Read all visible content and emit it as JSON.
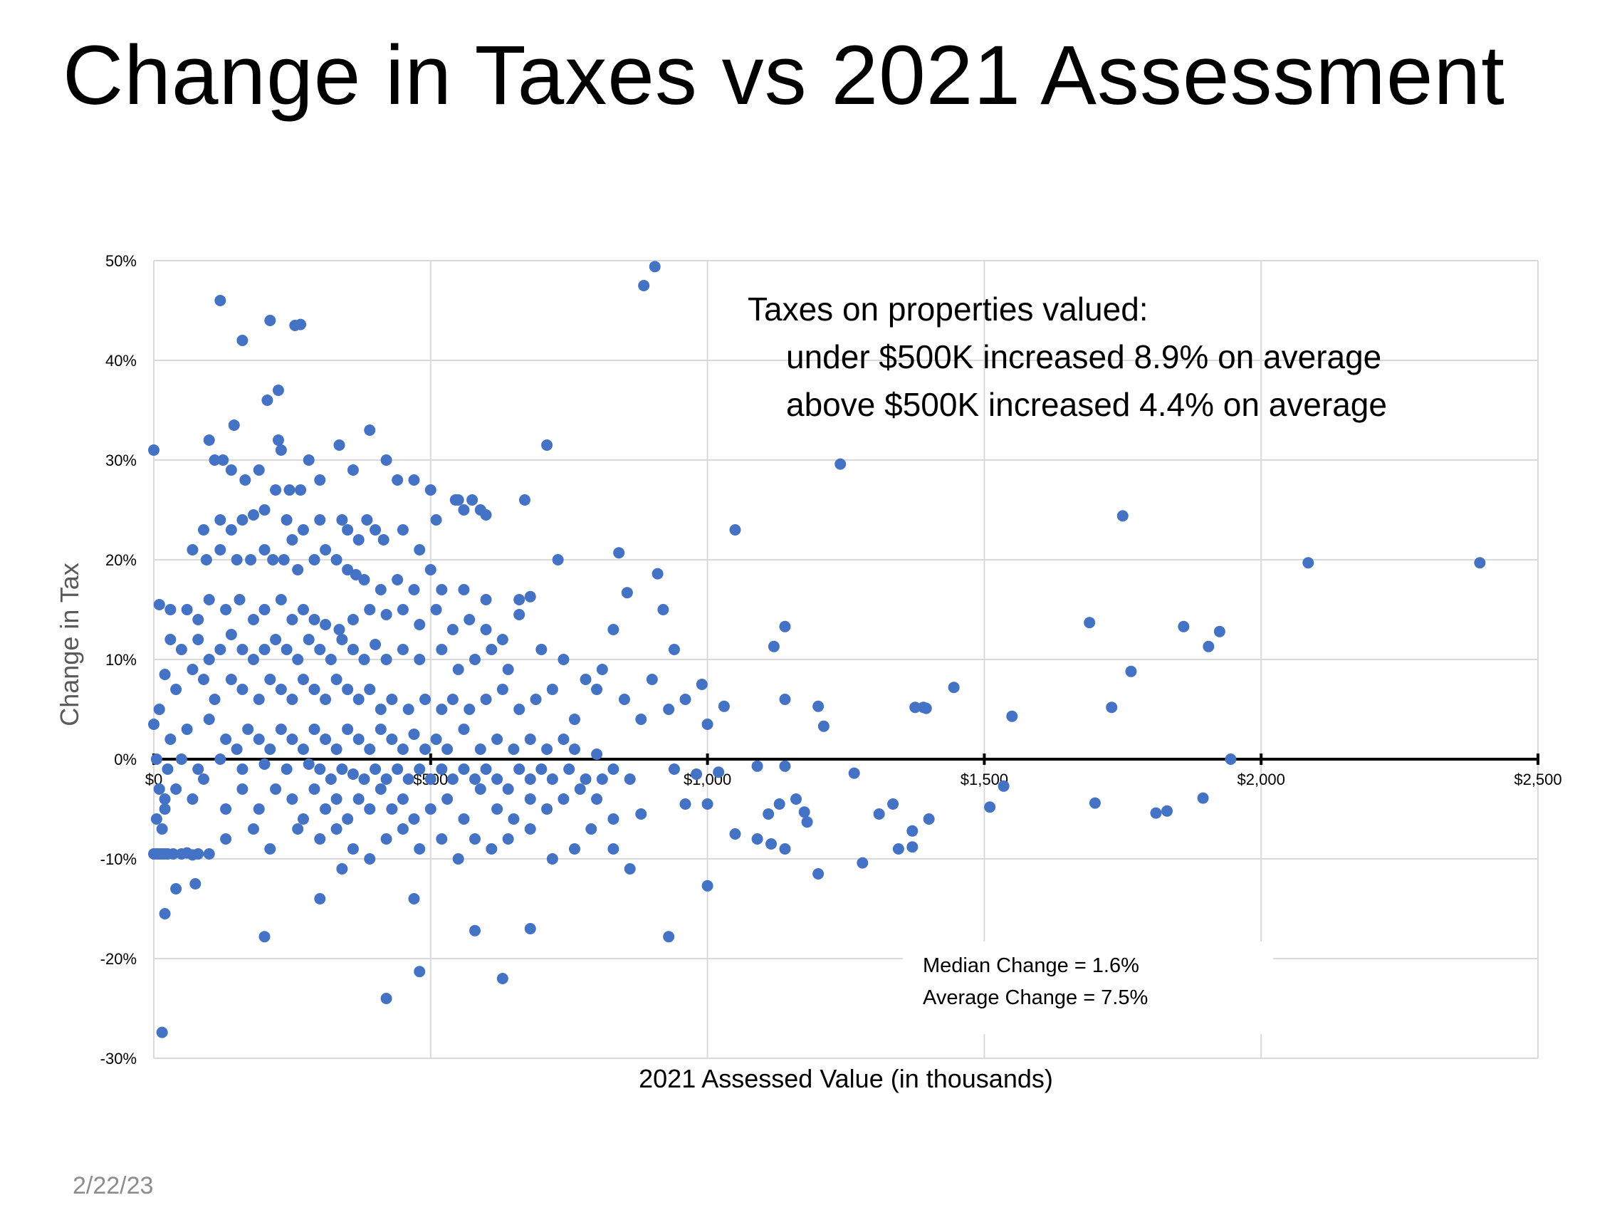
{
  "slide": {
    "title": "Change in Taxes vs 2021 Assessment",
    "date": "2/22/23"
  },
  "colors": {
    "point": "#4472C4",
    "grid": "#d9d9d9",
    "axis": "#000000"
  },
  "chart_data": {
    "type": "scatter",
    "xlabel": "2021 Assessed Value (in thousands)",
    "ylabel": "Change in Tax",
    "xlim": [
      0,
      2500
    ],
    "ylim": [
      -30,
      50
    ],
    "x_ticks": [
      {
        "value": 0,
        "label": "$0"
      },
      {
        "value": 500,
        "label": "$500"
      },
      {
        "value": 1000,
        "label": "$1,000"
      },
      {
        "value": 1500,
        "label": "$1,500"
      },
      {
        "value": 2000,
        "label": "$2,000"
      },
      {
        "value": 2500,
        "label": "$2,500"
      }
    ],
    "y_ticks": [
      {
        "value": 50,
        "label": "50%"
      },
      {
        "value": 40,
        "label": "40%"
      },
      {
        "value": 30,
        "label": "30%"
      },
      {
        "value": 20,
        "label": "20%"
      },
      {
        "value": 10,
        "label": "10%"
      },
      {
        "value": 0,
        "label": "0%"
      },
      {
        "value": -10,
        "label": "-10%"
      },
      {
        "value": -20,
        "label": "-20%"
      },
      {
        "value": -30,
        "label": "-30%"
      }
    ],
    "grid": true,
    "annotations": {
      "headline": "Taxes on properties valued:",
      "line1": "under $500K increased 8.9% on average",
      "line2": "above $500K increased 4.4% on average",
      "median": "Median Change = 1.6%",
      "average": "Average Change = 7.5%"
    },
    "points": [
      [
        120,
        46
      ],
      [
        160,
        42
      ],
      [
        210,
        44
      ],
      [
        255,
        43.5
      ],
      [
        265,
        43.6
      ],
      [
        905,
        49.4
      ],
      [
        885,
        47.5
      ],
      [
        225,
        37
      ],
      [
        205,
        36
      ],
      [
        145,
        33.5
      ],
      [
        390,
        33
      ],
      [
        0,
        31
      ],
      [
        100,
        32
      ],
      [
        125,
        30
      ],
      [
        225,
        32
      ],
      [
        230,
        31
      ],
      [
        280,
        30
      ],
      [
        335,
        31.5
      ],
      [
        420,
        30
      ],
      [
        710,
        31.5
      ],
      [
        1240,
        29.6
      ],
      [
        1750,
        24.4
      ],
      [
        2085,
        19.7
      ],
      [
        2395,
        19.7
      ],
      [
        110,
        30
      ],
      [
        140,
        29
      ],
      [
        165,
        28
      ],
      [
        190,
        29
      ],
      [
        220,
        27
      ],
      [
        245,
        27
      ],
      [
        265,
        27
      ],
      [
        300,
        28
      ],
      [
        360,
        29
      ],
      [
        440,
        28
      ],
      [
        470,
        28
      ],
      [
        500,
        27
      ],
      [
        545,
        26
      ],
      [
        575,
        26
      ],
      [
        590,
        25
      ],
      [
        600,
        24.5
      ],
      [
        670,
        26
      ],
      [
        90,
        23
      ],
      [
        120,
        24
      ],
      [
        140,
        23
      ],
      [
        160,
        24
      ],
      [
        180,
        24.5
      ],
      [
        200,
        25
      ],
      [
        240,
        24
      ],
      [
        250,
        22
      ],
      [
        270,
        23
      ],
      [
        300,
        24
      ],
      [
        340,
        24
      ],
      [
        350,
        23
      ],
      [
        370,
        22
      ],
      [
        385,
        24
      ],
      [
        400,
        23
      ],
      [
        415,
        22
      ],
      [
        450,
        23
      ],
      [
        480,
        21
      ],
      [
        510,
        24
      ],
      [
        550,
        26
      ],
      [
        560,
        25
      ],
      [
        1050,
        23
      ],
      [
        70,
        21
      ],
      [
        95,
        20
      ],
      [
        120,
        21
      ],
      [
        150,
        20
      ],
      [
        175,
        20
      ],
      [
        200,
        21
      ],
      [
        215,
        20
      ],
      [
        235,
        20
      ],
      [
        260,
        19
      ],
      [
        290,
        20
      ],
      [
        310,
        21
      ],
      [
        330,
        20
      ],
      [
        350,
        19
      ],
      [
        365,
        18.5
      ],
      [
        380,
        18
      ],
      [
        410,
        17
      ],
      [
        440,
        18
      ],
      [
        470,
        17
      ],
      [
        500,
        19
      ],
      [
        520,
        17
      ],
      [
        560,
        17
      ],
      [
        600,
        16
      ],
      [
        660,
        16
      ],
      [
        730,
        20
      ],
      [
        840,
        20.7
      ],
      [
        910,
        18.6
      ],
      [
        855,
        16.7
      ],
      [
        10,
        15.5
      ],
      [
        30,
        15
      ],
      [
        60,
        15
      ],
      [
        80,
        14
      ],
      [
        100,
        16
      ],
      [
        130,
        15
      ],
      [
        155,
        16
      ],
      [
        180,
        14
      ],
      [
        200,
        15
      ],
      [
        230,
        16
      ],
      [
        250,
        14
      ],
      [
        270,
        15
      ],
      [
        290,
        14
      ],
      [
        310,
        13.5
      ],
      [
        335,
        13
      ],
      [
        360,
        14
      ],
      [
        390,
        15
      ],
      [
        420,
        14.5
      ],
      [
        450,
        15
      ],
      [
        480,
        13.5
      ],
      [
        510,
        15
      ],
      [
        540,
        13
      ],
      [
        570,
        14
      ],
      [
        600,
        13
      ],
      [
        630,
        12
      ],
      [
        660,
        14.5
      ],
      [
        680,
        16.3
      ],
      [
        920,
        15
      ],
      [
        1140,
        13.3
      ],
      [
        1690,
        13.7
      ],
      [
        1860,
        13.3
      ],
      [
        1925,
        12.8
      ],
      [
        30,
        12
      ],
      [
        50,
        11
      ],
      [
        80,
        12
      ],
      [
        100,
        10
      ],
      [
        120,
        11
      ],
      [
        140,
        12.5
      ],
      [
        160,
        11
      ],
      [
        180,
        10
      ],
      [
        200,
        11
      ],
      [
        220,
        12
      ],
      [
        240,
        11
      ],
      [
        260,
        10
      ],
      [
        280,
        12
      ],
      [
        300,
        11
      ],
      [
        320,
        10
      ],
      [
        340,
        12
      ],
      [
        360,
        11
      ],
      [
        380,
        10
      ],
      [
        400,
        11.5
      ],
      [
        420,
        10
      ],
      [
        450,
        11
      ],
      [
        480,
        10
      ],
      [
        520,
        11
      ],
      [
        550,
        9
      ],
      [
        580,
        10
      ],
      [
        610,
        11
      ],
      [
        640,
        9
      ],
      [
        700,
        11
      ],
      [
        740,
        10
      ],
      [
        780,
        8
      ],
      [
        810,
        9
      ],
      [
        830,
        13
      ],
      [
        900,
        8
      ],
      [
        940,
        11
      ],
      [
        1120,
        11.3
      ],
      [
        1765,
        8.8
      ],
      [
        1905,
        11.3
      ],
      [
        20,
        8.5
      ],
      [
        40,
        7
      ],
      [
        70,
        9
      ],
      [
        90,
        8
      ],
      [
        110,
        6
      ],
      [
        140,
        8
      ],
      [
        160,
        7
      ],
      [
        190,
        6
      ],
      [
        210,
        8
      ],
      [
        230,
        7
      ],
      [
        250,
        6
      ],
      [
        270,
        8
      ],
      [
        290,
        7
      ],
      [
        310,
        6
      ],
      [
        330,
        8
      ],
      [
        350,
        7
      ],
      [
        370,
        6
      ],
      [
        390,
        7
      ],
      [
        410,
        5
      ],
      [
        430,
        6
      ],
      [
        460,
        5
      ],
      [
        490,
        6
      ],
      [
        520,
        5
      ],
      [
        540,
        6
      ],
      [
        570,
        5
      ],
      [
        600,
        6
      ],
      [
        630,
        7
      ],
      [
        660,
        5
      ],
      [
        690,
        6
      ],
      [
        720,
        7
      ],
      [
        760,
        4
      ],
      [
        800,
        7
      ],
      [
        850,
        6
      ],
      [
        880,
        4
      ],
      [
        930,
        5
      ],
      [
        960,
        6
      ],
      [
        990,
        7.5
      ],
      [
        1000,
        3.5
      ],
      [
        1030,
        5.3
      ],
      [
        1140,
        6
      ],
      [
        1200,
        5.3
      ],
      [
        1210,
        3.3
      ],
      [
        1375,
        5.2
      ],
      [
        1390,
        5.2
      ],
      [
        1395,
        5.1
      ],
      [
        1445,
        7.2
      ],
      [
        1550,
        4.3
      ],
      [
        1730,
        5.2
      ],
      [
        0,
        3.5
      ],
      [
        10,
        5
      ],
      [
        30,
        2
      ],
      [
        60,
        3
      ],
      [
        100,
        4
      ],
      [
        130,
        2
      ],
      [
        150,
        1
      ],
      [
        170,
        3
      ],
      [
        190,
        2
      ],
      [
        210,
        1
      ],
      [
        230,
        3
      ],
      [
        250,
        2
      ],
      [
        270,
        1
      ],
      [
        290,
        3
      ],
      [
        310,
        2
      ],
      [
        330,
        1
      ],
      [
        350,
        3
      ],
      [
        370,
        2
      ],
      [
        390,
        1
      ],
      [
        410,
        3
      ],
      [
        430,
        2
      ],
      [
        450,
        1
      ],
      [
        470,
        2.5
      ],
      [
        490,
        1
      ],
      [
        510,
        2
      ],
      [
        530,
        1
      ],
      [
        560,
        3
      ],
      [
        590,
        1
      ],
      [
        620,
        2
      ],
      [
        650,
        1
      ],
      [
        680,
        2
      ],
      [
        710,
        1
      ],
      [
        740,
        2
      ],
      [
        760,
        1
      ],
      [
        800,
        0.5
      ],
      [
        1945,
        0
      ],
      [
        5,
        0
      ],
      [
        25,
        -1
      ],
      [
        50,
        0
      ],
      [
        80,
        -1
      ],
      [
        120,
        0
      ],
      [
        160,
        -1
      ],
      [
        200,
        -0.5
      ],
      [
        240,
        -1
      ],
      [
        280,
        -0.5
      ],
      [
        300,
        -1
      ],
      [
        320,
        -2
      ],
      [
        340,
        -1
      ],
      [
        360,
        -1.5
      ],
      [
        380,
        -2
      ],
      [
        400,
        -1
      ],
      [
        420,
        -2
      ],
      [
        440,
        -1
      ],
      [
        460,
        -2
      ],
      [
        480,
        -1
      ],
      [
        500,
        -2
      ],
      [
        520,
        -1
      ],
      [
        540,
        -2
      ],
      [
        560,
        -1
      ],
      [
        580,
        -2
      ],
      [
        600,
        -1
      ],
      [
        620,
        -2
      ],
      [
        640,
        -3
      ],
      [
        660,
        -1
      ],
      [
        680,
        -2
      ],
      [
        700,
        -1
      ],
      [
        720,
        -2
      ],
      [
        750,
        -1
      ],
      [
        780,
        -2
      ],
      [
        810,
        -2
      ],
      [
        830,
        -1
      ],
      [
        860,
        -2
      ],
      [
        940,
        -1
      ],
      [
        980,
        -1.5
      ],
      [
        1020,
        -1.3
      ],
      [
        1090,
        -0.7
      ],
      [
        1140,
        -0.7
      ],
      [
        1265,
        -1.4
      ],
      [
        10,
        -3
      ],
      [
        20,
        -5
      ],
      [
        40,
        -3
      ],
      [
        70,
        -4
      ],
      [
        90,
        -2
      ],
      [
        130,
        -5
      ],
      [
        160,
        -3
      ],
      [
        190,
        -5
      ],
      [
        220,
        -3
      ],
      [
        250,
        -4
      ],
      [
        270,
        -6
      ],
      [
        290,
        -3
      ],
      [
        310,
        -5
      ],
      [
        330,
        -4
      ],
      [
        350,
        -6
      ],
      [
        370,
        -4
      ],
      [
        390,
        -5
      ],
      [
        410,
        -3
      ],
      [
        430,
        -5
      ],
      [
        450,
        -4
      ],
      [
        470,
        -6
      ],
      [
        500,
        -5
      ],
      [
        530,
        -4
      ],
      [
        560,
        -6
      ],
      [
        590,
        -3
      ],
      [
        620,
        -5
      ],
      [
        650,
        -6
      ],
      [
        680,
        -4
      ],
      [
        710,
        -5
      ],
      [
        740,
        -4
      ],
      [
        770,
        -3
      ],
      [
        800,
        -4
      ],
      [
        830,
        -6
      ],
      [
        880,
        -5.5
      ],
      [
        960,
        -4.5
      ],
      [
        1000,
        -4.5
      ],
      [
        1110,
        -5.5
      ],
      [
        1130,
        -4.5
      ],
      [
        1160,
        -4
      ],
      [
        1175,
        -5.3
      ],
      [
        1310,
        -5.5
      ],
      [
        1335,
        -4.5
      ],
      [
        1400,
        -6
      ],
      [
        1510,
        -4.8
      ],
      [
        1535,
        -2.7
      ],
      [
        1700,
        -4.4
      ],
      [
        1810,
        -5.4
      ],
      [
        1830,
        -5.2
      ],
      [
        1895,
        -3.9
      ],
      [
        15,
        -7
      ],
      [
        50,
        -9.5
      ],
      [
        80,
        -9.5
      ],
      [
        100,
        -9.5
      ],
      [
        130,
        -8
      ],
      [
        180,
        -7
      ],
      [
        210,
        -9
      ],
      [
        260,
        -7
      ],
      [
        300,
        -8
      ],
      [
        330,
        -7
      ],
      [
        360,
        -9
      ],
      [
        390,
        -10
      ],
      [
        420,
        -8
      ],
      [
        450,
        -7
      ],
      [
        480,
        -9
      ],
      [
        520,
        -8
      ],
      [
        550,
        -10
      ],
      [
        580,
        -8
      ],
      [
        610,
        -9
      ],
      [
        640,
        -8
      ],
      [
        680,
        -7
      ],
      [
        720,
        -10
      ],
      [
        760,
        -9
      ],
      [
        790,
        -7
      ],
      [
        830,
        -9
      ],
      [
        860,
        -11
      ],
      [
        1000,
        -12.7
      ],
      [
        1050,
        -7.5
      ],
      [
        1090,
        -8
      ],
      [
        1115,
        -8.5
      ],
      [
        1140,
        -9
      ],
      [
        1180,
        -6.3
      ],
      [
        1200,
        -11.5
      ],
      [
        1280,
        -10.4
      ],
      [
        1345,
        -9
      ],
      [
        1370,
        -7.2
      ],
      [
        1370,
        -8.8
      ],
      [
        0,
        -9.5
      ],
      [
        5,
        -9.5
      ],
      [
        10,
        -9.5
      ],
      [
        15,
        -9.5
      ],
      [
        20,
        -9.5
      ],
      [
        25,
        -9.5
      ],
      [
        35,
        -9.5
      ],
      [
        60,
        -9.4
      ],
      [
        70,
        -9.6
      ],
      [
        5,
        -6
      ],
      [
        20,
        -4
      ],
      [
        40,
        -13
      ],
      [
        75,
        -12.5
      ],
      [
        20,
        -15.5
      ],
      [
        300,
        -14
      ],
      [
        340,
        -11
      ],
      [
        470,
        -14
      ],
      [
        200,
        -17.8
      ],
      [
        580,
        -17.2
      ],
      [
        680,
        -17
      ],
      [
        930,
        -17.8
      ],
      [
        480,
        -21.3
      ],
      [
        630,
        -22
      ],
      [
        420,
        -24
      ],
      [
        15,
        -27.4
      ]
    ]
  }
}
